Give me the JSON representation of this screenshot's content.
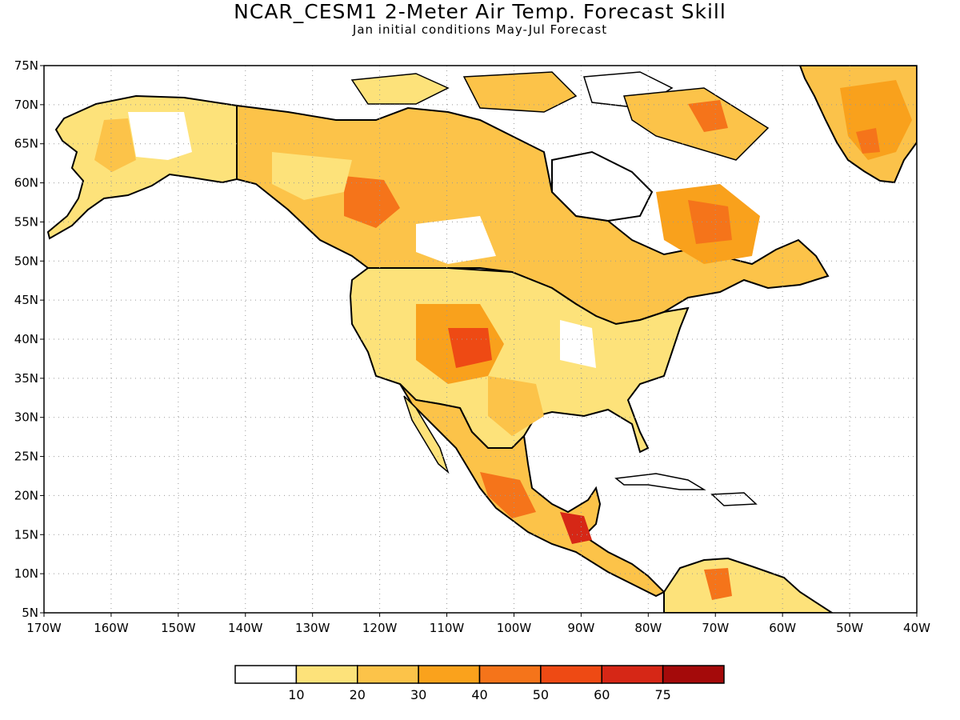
{
  "header": {
    "title": "NCAR_CESM1 2-Meter Air Temp. Forecast Skill",
    "subtitle": "Jan initial conditions   May-Jul Forecast"
  },
  "map": {
    "lon_range": [
      -170,
      -40
    ],
    "lat_range": [
      5,
      75
    ],
    "lat_labels": [
      "75N",
      "70N",
      "65N",
      "60N",
      "55N",
      "50N",
      "45N",
      "40N",
      "35N",
      "30N",
      "25N",
      "20N",
      "15N",
      "10N",
      "5N"
    ],
    "lon_labels": [
      "170W",
      "160W",
      "150W",
      "140W",
      "130W",
      "120W",
      "110W",
      "100W",
      "90W",
      "80W",
      "70W",
      "60W",
      "50W",
      "40W"
    ],
    "gridlines": "dotted"
  },
  "colorbar": {
    "labels": [
      "10",
      "20",
      "30",
      "40",
      "50",
      "60",
      "75"
    ],
    "colors": [
      "#ffffff",
      "#fde27a",
      "#fcc349",
      "#faa21c",
      "#f5741a",
      "#ee4a14",
      "#d62716",
      "#a40a0a"
    ]
  }
}
